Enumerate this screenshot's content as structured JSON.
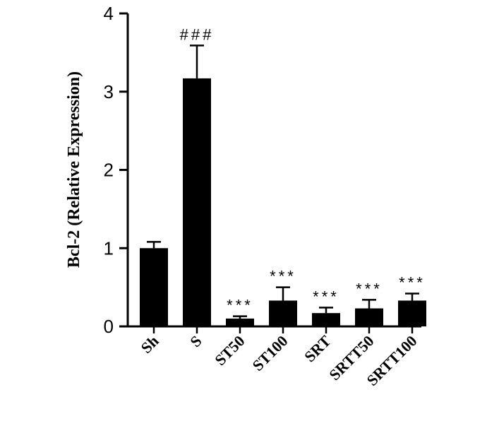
{
  "chart_data": {
    "type": "bar",
    "title": "",
    "xlabel": "",
    "ylabel": "Bcl-2 (Relative Expression)",
    "ylim": [
      0,
      4
    ],
    "yticks": [
      0,
      1,
      2,
      3,
      4
    ],
    "categories": [
      "Sh",
      "S",
      "ST50",
      "ST100",
      "SRT",
      "SRTT50",
      "SRTT100"
    ],
    "values": [
      1.0,
      3.17,
      0.1,
      0.33,
      0.17,
      0.23,
      0.33
    ],
    "errors": [
      0.08,
      0.42,
      0.03,
      0.17,
      0.07,
      0.11,
      0.09
    ],
    "annotations": [
      "",
      "###",
      "***",
      "***",
      "***",
      "***",
      "***"
    ],
    "bar_color": "#000000",
    "grid": false,
    "legend": "none"
  }
}
